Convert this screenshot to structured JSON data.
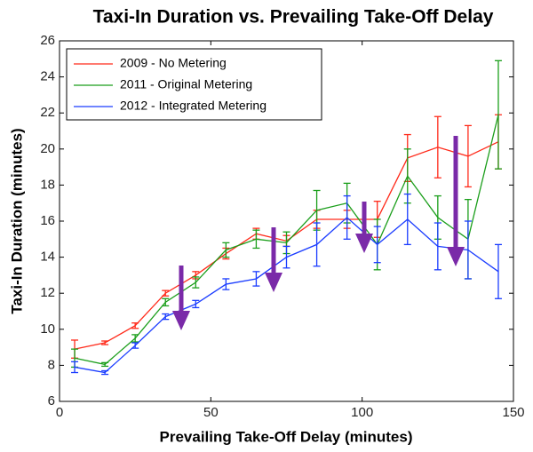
{
  "chart_data": {
    "type": "line",
    "title": "Taxi-In Duration vs. Prevailing Take-Off Delay",
    "x_label": "Prevailing Take-Off Delay (minutes)",
    "y_label": "Taxi-In Duration (minutes)",
    "x": [
      5,
      15,
      25,
      35,
      45,
      55,
      65,
      75,
      85,
      95,
      105,
      115,
      125,
      135,
      145
    ],
    "xlim": [
      0,
      150
    ],
    "xticks": [
      0,
      50,
      100,
      150
    ],
    "ylim": [
      6,
      26
    ],
    "yticks": [
      6,
      8,
      10,
      12,
      14,
      16,
      18,
      20,
      22,
      24,
      26
    ],
    "legend": "upper left",
    "series": [
      {
        "name": "2009 - No Metering",
        "color": "#ff2a1a",
        "values": [
          8.9,
          9.25,
          10.2,
          12.0,
          13.0,
          14.2,
          15.3,
          14.9,
          16.1,
          16.1,
          16.1,
          19.5,
          20.1,
          19.6,
          20.4
        ],
        "errors": [
          0.5,
          0.1,
          0.15,
          0.15,
          0.2,
          0.3,
          0.3,
          0.3,
          0.5,
          0.5,
          1.0,
          1.3,
          1.7,
          1.7,
          1.5
        ]
      },
      {
        "name": "2011 - Original Metering",
        "color": "#1a9e1a",
        "values": [
          8.4,
          8.05,
          9.5,
          11.5,
          12.6,
          14.4,
          15.0,
          14.8,
          16.6,
          17.0,
          14.7,
          18.5,
          16.2,
          15.0,
          21.9
        ],
        "errors": [
          0.5,
          0.1,
          0.2,
          0.2,
          0.3,
          0.4,
          0.5,
          0.6,
          1.1,
          1.1,
          1.4,
          1.5,
          1.2,
          2.2,
          3.0
        ]
      },
      {
        "name": "2012 - Integrated Metering",
        "color": "#1a3cff",
        "values": [
          7.9,
          7.6,
          9.1,
          10.7,
          11.4,
          12.5,
          12.8,
          14.0,
          14.7,
          16.2,
          14.7,
          16.1,
          14.6,
          14.4,
          13.2
        ],
        "errors": [
          0.3,
          0.1,
          0.15,
          0.15,
          0.2,
          0.3,
          0.4,
          0.6,
          1.2,
          1.2,
          1.0,
          1.4,
          1.3,
          1.6,
          1.5
        ]
      }
    ]
  }
}
